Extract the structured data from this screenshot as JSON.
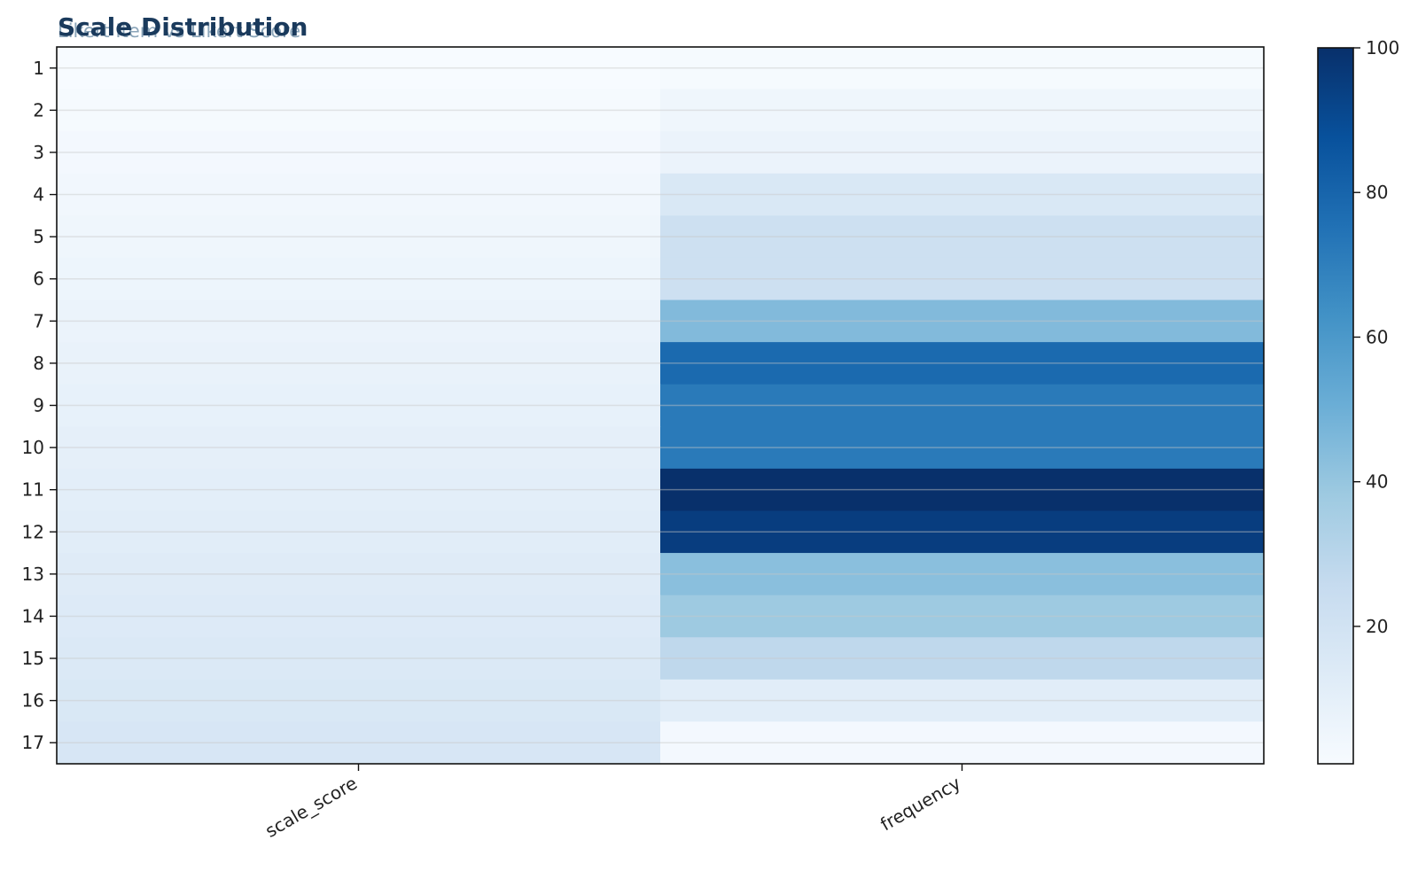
{
  "chart_data": {
    "type": "heatmap",
    "title": "Scale Distribution",
    "subtitle": "Likert Item vs Likert Score",
    "columns": [
      "scale_score",
      "frequency"
    ],
    "rows": [
      "1",
      "2",
      "3",
      "4",
      "5",
      "6",
      "7",
      "8",
      "9",
      "10",
      "11",
      "12",
      "13",
      "14",
      "15",
      "16",
      "17"
    ],
    "values": [
      [
        1,
        2
      ],
      [
        2,
        5
      ],
      [
        3,
        7
      ],
      [
        4,
        16
      ],
      [
        5,
        22
      ],
      [
        6,
        22
      ],
      [
        7,
        45
      ],
      [
        8,
        78
      ],
      [
        9,
        72
      ],
      [
        10,
        72
      ],
      [
        11,
        100
      ],
      [
        12,
        95
      ],
      [
        13,
        43
      ],
      [
        14,
        38
      ],
      [
        15,
        28
      ],
      [
        16,
        12
      ],
      [
        17,
        3
      ]
    ],
    "colorbar": {
      "min": 1,
      "max": 100,
      "ticks": [
        20,
        40,
        60,
        80,
        100
      ],
      "colormap": "Blues"
    },
    "colors": {
      "title": "#1a3a5c",
      "subtitle": "#6f8fa8"
    }
  }
}
